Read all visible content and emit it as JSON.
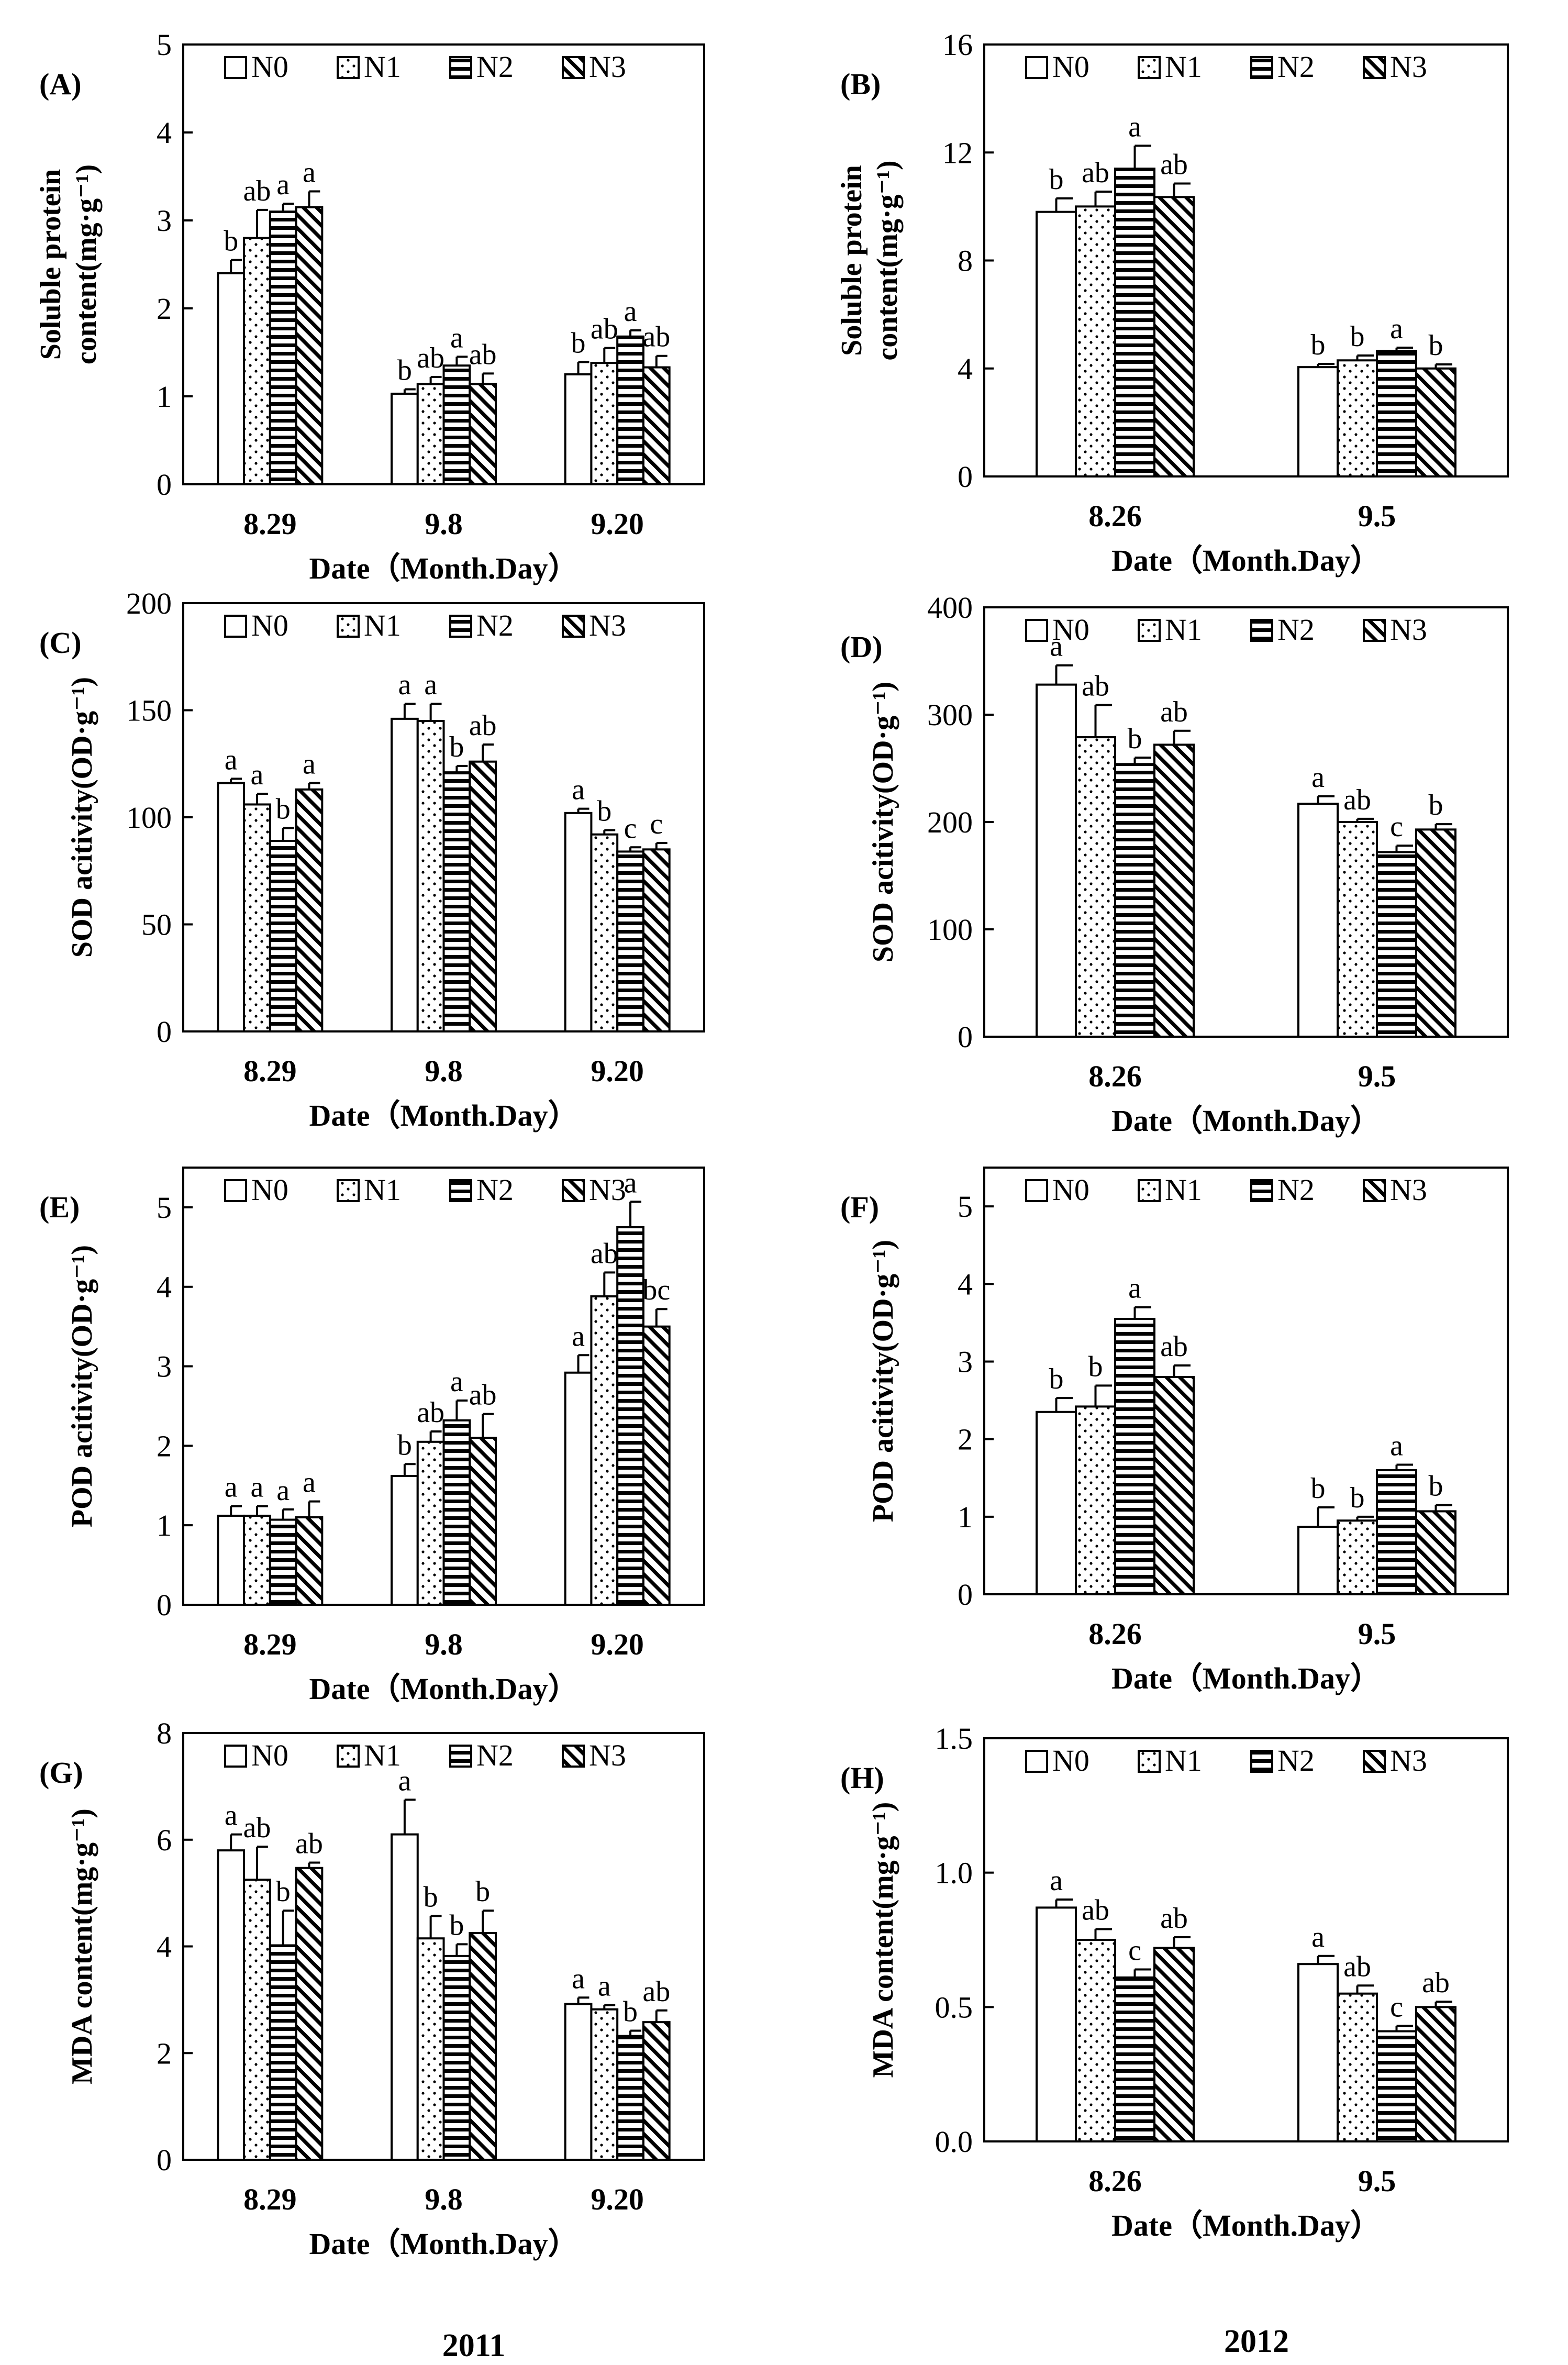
{
  "colors": {
    "ink": "#000000",
    "paper": "#ffffff"
  },
  "legend": [
    "N0",
    "N1",
    "N2",
    "N3"
  ],
  "years": {
    "left": "2011",
    "right": "2012"
  },
  "chart_data": [
    {
      "panel": "(A)",
      "type": "bar",
      "title": "",
      "xlabel": "Date（Month.Day）",
      "ylabel": [
        "Soluble protein",
        "content(mg·g⁻¹)"
      ],
      "categories": [
        "8.29",
        "9.8",
        "9.20"
      ],
      "ylim": [
        0,
        5
      ],
      "yticks": [
        "0",
        "1",
        "2",
        "3",
        "4",
        "5"
      ],
      "series": [
        {
          "name": "N0",
          "values": [
            2.4,
            1.03,
            1.25
          ],
          "errors": [
            0.15,
            0.05,
            0.14
          ],
          "letters": [
            "b",
            "b",
            "b"
          ]
        },
        {
          "name": "N1",
          "values": [
            2.8,
            1.14,
            1.38
          ],
          "errors": [
            0.32,
            0.08,
            0.17
          ],
          "letters": [
            "ab",
            "ab",
            "ab"
          ]
        },
        {
          "name": "N2",
          "values": [
            3.1,
            1.35,
            1.68
          ],
          "errors": [
            0.09,
            0.1,
            0.07
          ],
          "letters": [
            "a",
            "a",
            "a"
          ]
        },
        {
          "name": "N3",
          "values": [
            3.15,
            1.14,
            1.33
          ],
          "errors": [
            0.18,
            0.12,
            0.13
          ],
          "letters": [
            "a",
            "ab",
            "ab"
          ]
        }
      ]
    },
    {
      "panel": "(B)",
      "type": "bar",
      "title": "",
      "xlabel": "Date（Month.Day）",
      "ylabel": [
        "Soluble protein",
        "content(mg·g⁻¹)"
      ],
      "categories": [
        "8.26",
        "9.5"
      ],
      "ylim": [
        0,
        16
      ],
      "yticks": [
        "0",
        "4",
        "8",
        "12",
        "16"
      ],
      "series": [
        {
          "name": "N0",
          "values": [
            9.8,
            4.05
          ],
          "errors": [
            0.5,
            0.12
          ],
          "letters": [
            "b",
            "b"
          ]
        },
        {
          "name": "N1",
          "values": [
            10.0,
            4.3
          ],
          "errors": [
            0.55,
            0.18
          ],
          "letters": [
            "ab",
            "b"
          ]
        },
        {
          "name": "N2",
          "values": [
            11.4,
            4.65
          ],
          "errors": [
            0.85,
            0.12
          ],
          "letters": [
            "a",
            "a"
          ]
        },
        {
          "name": "N3",
          "values": [
            10.35,
            4.0
          ],
          "errors": [
            0.5,
            0.15
          ],
          "letters": [
            "ab",
            "b"
          ]
        }
      ]
    },
    {
      "panel": "(C)",
      "type": "bar",
      "title": "",
      "xlabel": "Date（Month.Day）",
      "ylabel": [
        "SOD acitivity(OD·g⁻¹)"
      ],
      "categories": [
        "8.29",
        "9.8",
        "9.20"
      ],
      "ylim": [
        0,
        200
      ],
      "yticks": [
        "0",
        "50",
        "100",
        "150",
        "200"
      ],
      "series": [
        {
          "name": "N0",
          "values": [
            116,
            146,
            102
          ],
          "errors": [
            2,
            7,
            2
          ],
          "letters": [
            "a",
            "a",
            "a"
          ]
        },
        {
          "name": "N1",
          "values": [
            106,
            145,
            92
          ],
          "errors": [
            5,
            8,
            2
          ],
          "letters": [
            "a",
            "a",
            "b"
          ]
        },
        {
          "name": "N2",
          "values": [
            89,
            121,
            84
          ],
          "errors": [
            6,
            3,
            2
          ],
          "letters": [
            "b",
            "b",
            "c"
          ]
        },
        {
          "name": "N3",
          "values": [
            113,
            126,
            85
          ],
          "errors": [
            3,
            8,
            3
          ],
          "letters": [
            "a",
            "ab",
            "c"
          ]
        }
      ]
    },
    {
      "panel": "(D)",
      "type": "bar",
      "title": "",
      "xlabel": "Date（Month.Day）",
      "ylabel": [
        "SOD acitivity(OD·g⁻¹)"
      ],
      "categories": [
        "8.26",
        "9.5"
      ],
      "ylim": [
        0,
        400
      ],
      "yticks": [
        "0",
        "100",
        "200",
        "300",
        "400"
      ],
      "series": [
        {
          "name": "N0",
          "values": [
            328,
            217
          ],
          "errors": [
            18,
            7
          ],
          "letters": [
            "a",
            "a"
          ]
        },
        {
          "name": "N1",
          "values": [
            279,
            200
          ],
          "errors": [
            30,
            3
          ],
          "letters": [
            "ab",
            "ab"
          ]
        },
        {
          "name": "N2",
          "values": [
            254,
            172
          ],
          "errors": [
            6,
            6
          ],
          "letters": [
            "b",
            "c"
          ]
        },
        {
          "name": "N3",
          "values": [
            272,
            193
          ],
          "errors": [
            13,
            5
          ],
          "letters": [
            "ab",
            "b"
          ]
        }
      ]
    },
    {
      "panel": "(E)",
      "type": "bar",
      "title": "",
      "xlabel": "Date（Month.Day）",
      "ylabel": [
        "POD acitivity(OD·g⁻¹)"
      ],
      "categories": [
        "8.29",
        "9.8",
        "9.20"
      ],
      "ylim": [
        0,
        5.5
      ],
      "yticks": [
        "0",
        "1",
        "2",
        "3",
        "4",
        "5"
      ],
      "series": [
        {
          "name": "N0",
          "values": [
            1.12,
            1.62,
            2.92
          ],
          "errors": [
            0.12,
            0.15,
            0.22
          ],
          "letters": [
            "a",
            "b",
            "a"
          ]
        },
        {
          "name": "N1",
          "values": [
            1.12,
            2.05,
            3.88
          ],
          "errors": [
            0.12,
            0.13,
            0.3
          ],
          "letters": [
            "a",
            "ab",
            "ab"
          ]
        },
        {
          "name": "N2",
          "values": [
            1.07,
            2.32,
            4.75
          ],
          "errors": [
            0.13,
            0.25,
            0.32
          ],
          "letters": [
            "a",
            "a",
            "a"
          ]
        },
        {
          "name": "N3",
          "values": [
            1.1,
            2.1,
            3.5
          ],
          "errors": [
            0.2,
            0.3,
            0.22
          ],
          "letters": [
            "a",
            "ab",
            "bc"
          ]
        }
      ]
    },
    {
      "panel": "(F)",
      "type": "bar",
      "title": "",
      "xlabel": "Date（Month.Day）",
      "ylabel": [
        "POD acitivity(OD·g⁻¹)"
      ],
      "categories": [
        "8.26",
        "9.5"
      ],
      "ylim": [
        0,
        5.5
      ],
      "yticks": [
        "0",
        "1",
        "2",
        "3",
        "4",
        "5"
      ],
      "series": [
        {
          "name": "N0",
          "values": [
            2.35,
            0.87
          ],
          "errors": [
            0.18,
            0.25
          ],
          "letters": [
            "b",
            "b"
          ]
        },
        {
          "name": "N1",
          "values": [
            2.42,
            0.95
          ],
          "errors": [
            0.27,
            0.05
          ],
          "letters": [
            "b",
            "b"
          ]
        },
        {
          "name": "N2",
          "values": [
            3.55,
            1.6
          ],
          "errors": [
            0.15,
            0.07
          ],
          "letters": [
            "a",
            "a"
          ]
        },
        {
          "name": "N3",
          "values": [
            2.8,
            1.07
          ],
          "errors": [
            0.15,
            0.08
          ],
          "letters": [
            "ab",
            "b"
          ]
        }
      ]
    },
    {
      "panel": "(G)",
      "type": "bar",
      "title": "",
      "xlabel": "Date（Month.Day）",
      "ylabel": [
        "MDA content(mg·g⁻¹)"
      ],
      "categories": [
        "8.29",
        "9.8",
        "9.20"
      ],
      "ylim": [
        0,
        8
      ],
      "yticks": [
        "0",
        "2",
        "4",
        "6",
        "8"
      ],
      "series": [
        {
          "name": "N0",
          "values": [
            5.8,
            6.1,
            2.92
          ],
          "errors": [
            0.3,
            0.65,
            0.12
          ],
          "letters": [
            "a",
            "a",
            "a"
          ]
        },
        {
          "name": "N1",
          "values": [
            5.25,
            4.15,
            2.82
          ],
          "errors": [
            0.62,
            0.42,
            0.08
          ],
          "letters": [
            "ab",
            "b",
            "a"
          ]
        },
        {
          "name": "N2",
          "values": [
            4.02,
            3.82,
            2.32
          ],
          "errors": [
            0.65,
            0.22,
            0.1
          ],
          "letters": [
            "b",
            "b",
            "b"
          ]
        },
        {
          "name": "N3",
          "values": [
            5.47,
            4.25,
            2.58
          ],
          "errors": [
            0.1,
            0.42,
            0.22
          ],
          "letters": [
            "ab",
            "b",
            "ab"
          ]
        }
      ]
    },
    {
      "panel": "(H)",
      "type": "bar",
      "title": "",
      "xlabel": "Date（Month.Day）",
      "ylabel": [
        "MDA content(mg·g⁻¹)"
      ],
      "categories": [
        "8.26",
        "9.5"
      ],
      "ylim": [
        0,
        1.5
      ],
      "yticks": [
        "0.0",
        "0.5",
        "1.0",
        "1.5"
      ],
      "series": [
        {
          "name": "N0",
          "values": [
            0.87,
            0.66
          ],
          "errors": [
            0.03,
            0.03
          ],
          "letters": [
            "a",
            "a"
          ]
        },
        {
          "name": "N1",
          "values": [
            0.75,
            0.55
          ],
          "errors": [
            0.04,
            0.03
          ],
          "letters": [
            "ab",
            "ab"
          ]
        },
        {
          "name": "N2",
          "values": [
            0.61,
            0.41
          ],
          "errors": [
            0.03,
            0.02
          ],
          "letters": [
            "c",
            "c"
          ]
        },
        {
          "name": "N3",
          "values": [
            0.72,
            0.5
          ],
          "errors": [
            0.04,
            0.02
          ],
          "letters": [
            "ab",
            "ab"
          ]
        }
      ]
    }
  ]
}
